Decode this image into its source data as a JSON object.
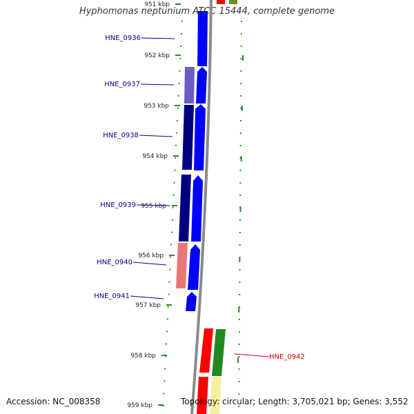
{
  "title": "Hyphomonas neptunium ATCC 15444, complete genome",
  "accession_text": "Accession: NC_008358",
  "info_text": "Topology: circular; Length: 3,705,021 bp; Genes: 3,552",
  "colors": {
    "backbone": "#8a8a8a",
    "forward_gene": "#0000ff",
    "reverse_gene_dark": "#000080",
    "reverse_gene_light": "#6b5bc4",
    "rrna_pink": "#e87878",
    "red_gene": "#ff0000",
    "green_gene": "#1f8a1f",
    "yellow_gene": "#f5f0a0",
    "tick": "#228b22",
    "label_blue": "#00008b",
    "label_red": "#cc0000"
  },
  "scale_labels": [
    "951 kbp",
    "952 kbp",
    "953 kbp",
    "954 kbp",
    "955 kbp",
    "956 kbp",
    "957 kbp",
    "958 kbp",
    "959 kbp"
  ],
  "gene_labels": [
    "HNE_0936",
    "HNE_0937",
    "HNE_0938",
    "HNE_0939",
    "HNE_0940",
    "HNE_0941",
    "HNE_0942"
  ]
}
